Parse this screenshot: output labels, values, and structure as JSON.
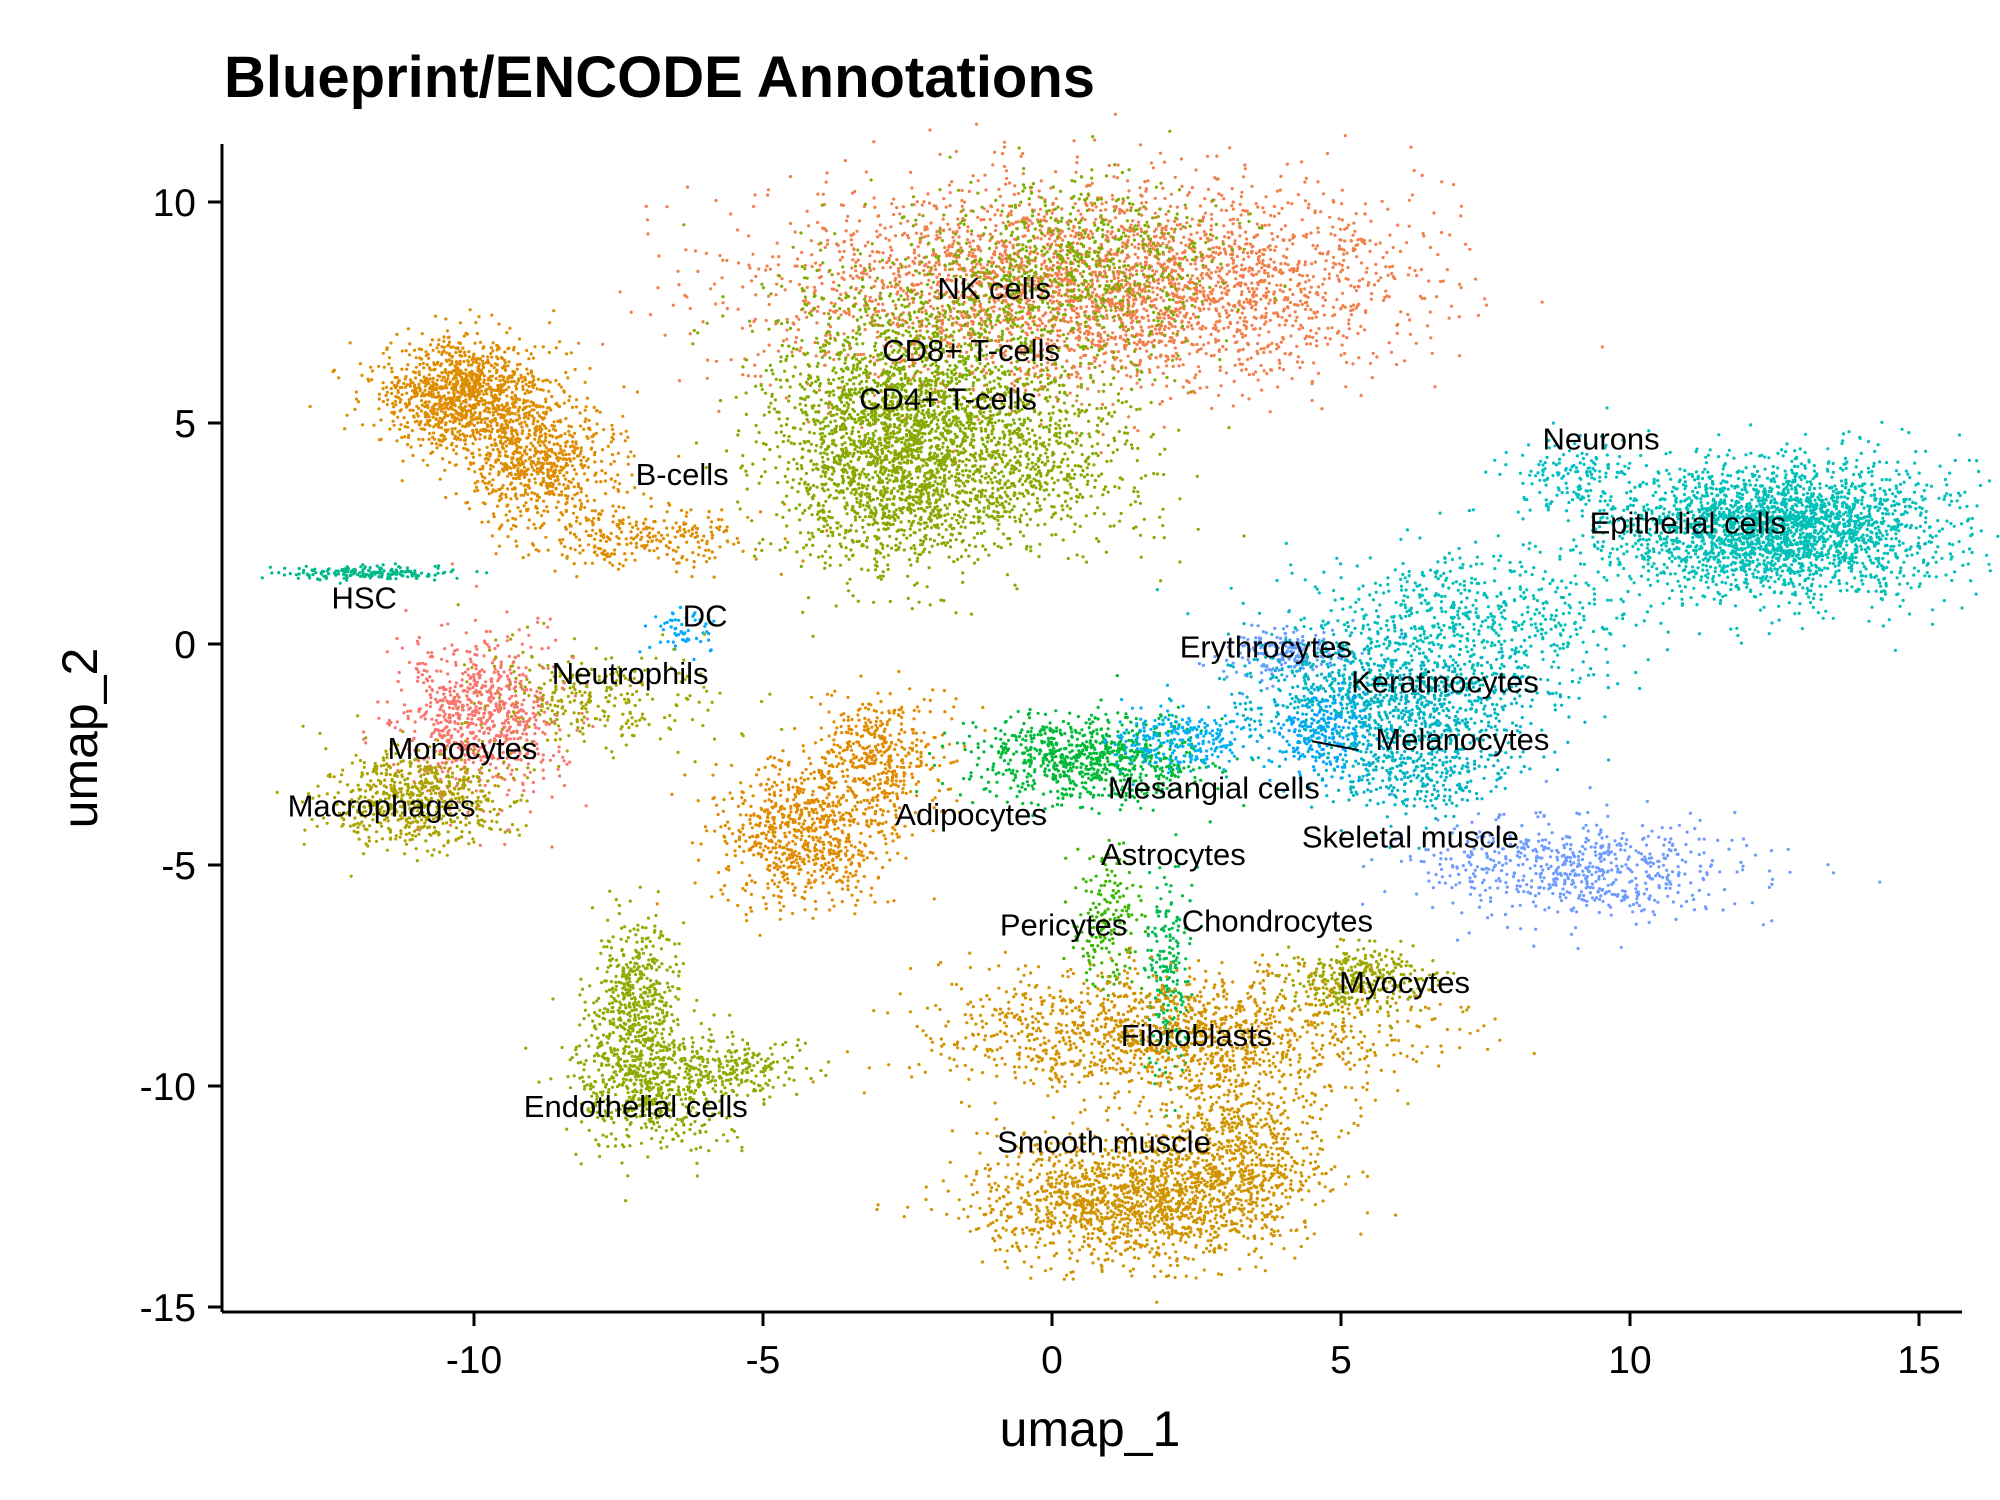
{
  "chart_data": {
    "type": "scatter",
    "title": "Blueprint/ENCODE Annotations",
    "xlabel": "umap_1",
    "ylabel": "umap_2",
    "xlim": [
      -14.5,
      15.8
    ],
    "ylim": [
      -15.3,
      11.3
    ],
    "x_ticks": [
      -10,
      -5,
      0,
      5,
      10,
      15
    ],
    "x_tick_labels": [
      "-10",
      "-5",
      "0",
      "5",
      "10",
      "15"
    ],
    "y_ticks": [
      -15,
      -10,
      -5,
      0,
      5,
      10
    ],
    "y_tick_labels": [
      "-15",
      "-10",
      "-5",
      "0",
      "5",
      "10"
    ],
    "grid": false,
    "legend": "none",
    "clusters": [
      {
        "label": "NK cells",
        "label_x": -1.0,
        "label_y": 7.8,
        "color": "#F17F4A",
        "blobs": [
          {
            "x": -0.5,
            "y": 8.0,
            "sx": 2.4,
            "sy": 1.2,
            "n": 2200
          },
          {
            "x": 2.8,
            "y": 8.2,
            "sx": 1.8,
            "sy": 1.1,
            "n": 1200
          }
        ]
      },
      {
        "label": "CD8+ T-cells",
        "label_x": -1.4,
        "label_y": 6.4,
        "color": "#7CAE00",
        "blobs": [
          {
            "x": -2.2,
            "y": 5.8,
            "sx": 1.4,
            "sy": 1.5,
            "n": 1400
          },
          {
            "x": 0.5,
            "y": 8.5,
            "sx": 1.2,
            "sy": 1.0,
            "n": 700
          }
        ]
      },
      {
        "label": "CD4+ T-cells",
        "label_x": -1.8,
        "label_y": 5.3,
        "color": "#8BA700",
        "blobs": [
          {
            "x": -3.0,
            "y": 4.0,
            "sx": 0.9,
            "sy": 1.2,
            "n": 1200
          },
          {
            "x": -1.0,
            "y": 4.2,
            "sx": 1.3,
            "sy": 1.0,
            "n": 900
          }
        ]
      },
      {
        "label": "B-cells",
        "label_x": -6.4,
        "label_y": 3.6,
        "color": "#DE8C00",
        "blobs": [
          {
            "x": -10.2,
            "y": 5.6,
            "sx": 0.75,
            "sy": 0.65,
            "n": 1200
          },
          {
            "x": -8.9,
            "y": 4.1,
            "sx": 0.65,
            "sy": 0.7,
            "n": 650
          },
          {
            "x": -7.2,
            "y": 2.4,
            "sx": 1.0,
            "sy": 0.35,
            "n": 280
          }
        ]
      },
      {
        "label": "HSC",
        "label_x": -11.9,
        "label_y": 0.8,
        "color": "#00B98A",
        "blobs": [
          {
            "x": -11.8,
            "y": 1.6,
            "sx": 0.75,
            "sy": 0.08,
            "n": 180
          }
        ]
      },
      {
        "label": "DC",
        "label_x": -6.0,
        "label_y": 0.4,
        "color": "#00A9FF",
        "blobs": [
          {
            "x": -6.4,
            "y": 0.3,
            "sx": 0.3,
            "sy": 0.25,
            "n": 60
          }
        ]
      },
      {
        "label": "Neutrophils",
        "label_x": -7.3,
        "label_y": -0.9,
        "color": "#A3A500",
        "blobs": [
          {
            "x": -8.0,
            "y": -1.2,
            "sx": 1.1,
            "sy": 0.6,
            "n": 320
          }
        ]
      },
      {
        "label": "Monocytes",
        "label_x": -10.2,
        "label_y": -2.6,
        "color": "#F8766D",
        "blobs": [
          {
            "x": -9.9,
            "y": -1.7,
            "sx": 0.7,
            "sy": 0.9,
            "n": 750
          }
        ]
      },
      {
        "label": "Macrophages",
        "label_x": -11.6,
        "label_y": -3.9,
        "color": "#ABA300",
        "blobs": [
          {
            "x": -11.0,
            "y": -3.5,
            "sx": 0.8,
            "sy": 0.55,
            "n": 650
          }
        ]
      },
      {
        "label": "Adipocytes",
        "label_x": -1.4,
        "label_y": -4.1,
        "color": "#E08B00",
        "blobs": [
          {
            "x": -4.3,
            "y": -4.3,
            "sx": 0.75,
            "sy": 0.75,
            "n": 750
          },
          {
            "x": -3.1,
            "y": -2.6,
            "sx": 0.6,
            "sy": 0.7,
            "n": 450
          }
        ]
      },
      {
        "label": "Mesangial cells",
        "label_x": 2.8,
        "label_y": -3.5,
        "color": "#00BA38",
        "blobs": [
          {
            "x": 0.6,
            "y": -2.6,
            "sx": 1.0,
            "sy": 0.5,
            "n": 800
          }
        ]
      },
      {
        "label": "Astrocytes",
        "label_x": 2.1,
        "label_y": -5.0,
        "color": "#00B0F6",
        "blobs": [
          {
            "x": 2.2,
            "y": -2.2,
            "sx": 0.7,
            "sy": 0.35,
            "n": 250
          }
        ]
      },
      {
        "label": "Erythrocytes",
        "label_x": 3.7,
        "label_y": -0.3,
        "color": "#619CFF",
        "blobs": [
          {
            "x": 4.0,
            "y": -0.2,
            "sx": 0.5,
            "sy": 0.3,
            "n": 200
          }
        ]
      },
      {
        "label": "Keratinocytes",
        "label_x": 6.8,
        "label_y": -1.1,
        "color": "#00B4C4",
        "blobs": [
          {
            "x": 5.8,
            "y": -1.2,
            "sx": 1.3,
            "sy": 0.7,
            "n": 1000
          },
          {
            "x": 6.3,
            "y": -2.8,
            "sx": 0.8,
            "sy": 0.6,
            "n": 400
          }
        ]
      },
      {
        "label": "Melanocytes",
        "label_x": 7.1,
        "label_y": -2.4,
        "color": "#00A5FF",
        "blobs": [
          {
            "x": 4.7,
            "y": -2.0,
            "sx": 0.4,
            "sy": 0.5,
            "n": 200
          }
        ]
      },
      {
        "label": "Neurons",
        "label_x": 9.5,
        "label_y": 4.4,
        "color": "#00BFC4",
        "blobs": [
          {
            "x": 9.0,
            "y": 3.8,
            "sx": 0.6,
            "sy": 0.4,
            "n": 150
          }
        ]
      },
      {
        "label": "Epithelial cells",
        "label_x": 11.0,
        "label_y": 2.5,
        "color": "#00C0B8",
        "blobs": [
          {
            "x": 12.6,
            "y": 2.6,
            "sx": 1.4,
            "sy": 0.75,
            "n": 2600
          },
          {
            "x": 7.2,
            "y": 0.6,
            "sx": 1.4,
            "sy": 0.8,
            "n": 600
          }
        ]
      },
      {
        "label": "Skeletal muscle",
        "label_x": 6.2,
        "label_y": -4.6,
        "color": "#6D9BFF",
        "blobs": [
          {
            "x": 9.2,
            "y": -5.1,
            "sx": 1.4,
            "sy": 0.55,
            "n": 650
          }
        ]
      },
      {
        "label": "Pericytes",
        "label_x": 0.2,
        "label_y": -6.6,
        "color": "#39B600",
        "blobs": [
          {
            "x": 1.0,
            "y": -6.3,
            "sx": 0.3,
            "sy": 0.8,
            "n": 180
          }
        ]
      },
      {
        "label": "Chondrocytes",
        "label_x": 3.9,
        "label_y": -6.5,
        "color": "#00BB4E",
        "blobs": [
          {
            "x": 2.0,
            "y": -7.5,
            "sx": 0.2,
            "sy": 1.1,
            "n": 220
          }
        ]
      },
      {
        "label": "Myocytes",
        "label_x": 6.1,
        "label_y": -7.9,
        "color": "#9CA700",
        "blobs": [
          {
            "x": 5.3,
            "y": -7.6,
            "sx": 0.6,
            "sy": 0.4,
            "n": 350
          }
        ]
      },
      {
        "label": "Fibroblasts",
        "label_x": 2.5,
        "label_y": -9.1,
        "color": "#D39200",
        "blobs": [
          {
            "x": 2.0,
            "y": -8.8,
            "sx": 2.0,
            "sy": 0.7,
            "n": 1400
          }
        ]
      },
      {
        "label": "Smooth muscle",
        "label_x": 0.9,
        "label_y": -11.5,
        "color": "#CF9400",
        "blobs": [
          {
            "x": 1.4,
            "y": -12.6,
            "sx": 1.3,
            "sy": 0.7,
            "n": 1500
          },
          {
            "x": 3.3,
            "y": -11.4,
            "sx": 0.7,
            "sy": 0.9,
            "n": 600
          }
        ]
      },
      {
        "label": "Endothelial cells",
        "label_x": -7.2,
        "label_y": -10.7,
        "color": "#8FAA00",
        "blobs": [
          {
            "x": -7.0,
            "y": -9.9,
            "sx": 0.7,
            "sy": 0.8,
            "n": 650
          },
          {
            "x": -7.2,
            "y": -8.0,
            "sx": 0.35,
            "sy": 0.9,
            "n": 450
          },
          {
            "x": -5.5,
            "y": -9.6,
            "sx": 0.6,
            "sy": 0.35,
            "n": 200
          }
        ]
      }
    ]
  }
}
